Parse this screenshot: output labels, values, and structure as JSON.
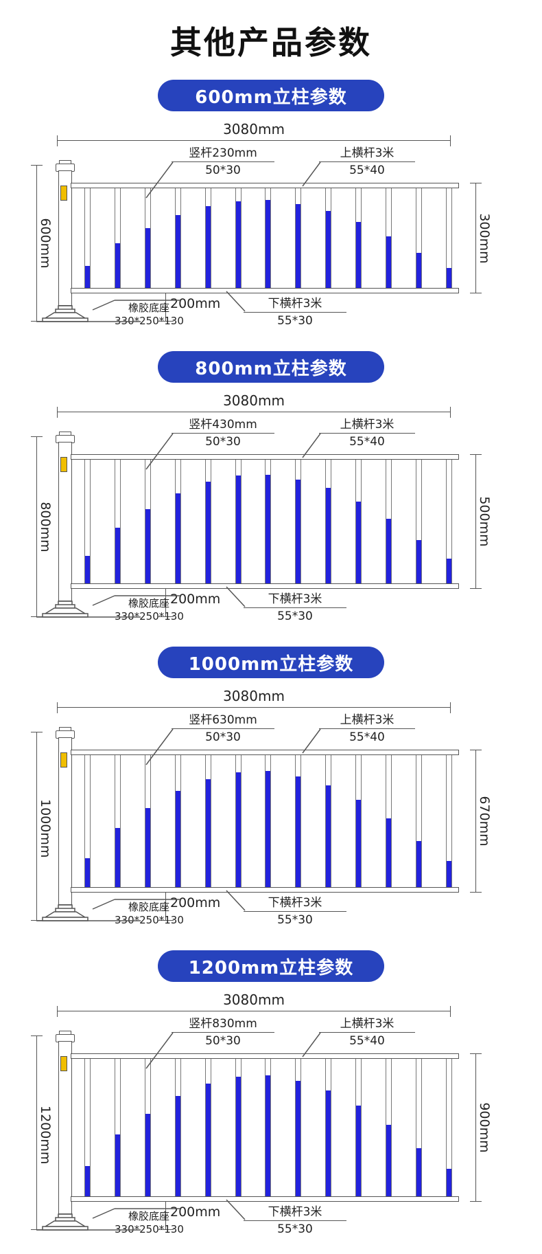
{
  "page": {
    "title": "其他产品参数"
  },
  "colors": {
    "badge_blue": "#2743bd",
    "bar_blue": "#2222dd",
    "reflector_yellow": "#f0be00",
    "line": "#555555"
  },
  "fence": {
    "bar_count": 13,
    "bar_fill_fractions": [
      0.22,
      0.45,
      0.6,
      0.73,
      0.82,
      0.87,
      0.88,
      0.84,
      0.77,
      0.66,
      0.52,
      0.35,
      0.2
    ]
  },
  "sections": [
    {
      "badge": "600mm立柱参数",
      "overall_width": "3080mm",
      "post_height": "600mm",
      "panel_height": "300mm",
      "vertical_bar_label": "竖杆230mm",
      "vertical_bar_size": "50*30",
      "top_rail_label": "上横杆3米",
      "top_rail_size": "55*40",
      "bottom_rail_label": "下横杆3米",
      "bottom_rail_size": "55*30",
      "base_label": "橡胶底座",
      "base_size": "330*250*130",
      "ground_clearance": "200mm"
    },
    {
      "badge": "800mm立柱参数",
      "overall_width": "3080mm",
      "post_height": "800mm",
      "panel_height": "500mm",
      "vertical_bar_label": "竖杆430mm",
      "vertical_bar_size": "50*30",
      "top_rail_label": "上横杆3米",
      "top_rail_size": "55*40",
      "bottom_rail_label": "下横杆3米",
      "bottom_rail_size": "55*30",
      "base_label": "橡胶底座",
      "base_size": "330*250*130",
      "ground_clearance": "200mm"
    },
    {
      "badge": "1000mm立柱参数",
      "overall_width": "3080mm",
      "post_height": "1000mm",
      "panel_height": "670mm",
      "vertical_bar_label": "竖杆630mm",
      "vertical_bar_size": "50*30",
      "top_rail_label": "上横杆3米",
      "top_rail_size": "55*40",
      "bottom_rail_label": "下横杆3米",
      "bottom_rail_size": "55*30",
      "base_label": "橡胶底座",
      "base_size": "330*250*130",
      "ground_clearance": "200mm"
    },
    {
      "badge": "1200mm立柱参数",
      "overall_width": "3080mm",
      "post_height": "1200mm",
      "panel_height": "900mm",
      "vertical_bar_label": "竖杆830mm",
      "vertical_bar_size": "50*30",
      "top_rail_label": "上横杆3米",
      "top_rail_size": "55*40",
      "bottom_rail_label": "下横杆3米",
      "bottom_rail_size": "55*30",
      "base_label": "橡胶底座",
      "base_size": "330*250*130",
      "ground_clearance": "200mm"
    }
  ]
}
